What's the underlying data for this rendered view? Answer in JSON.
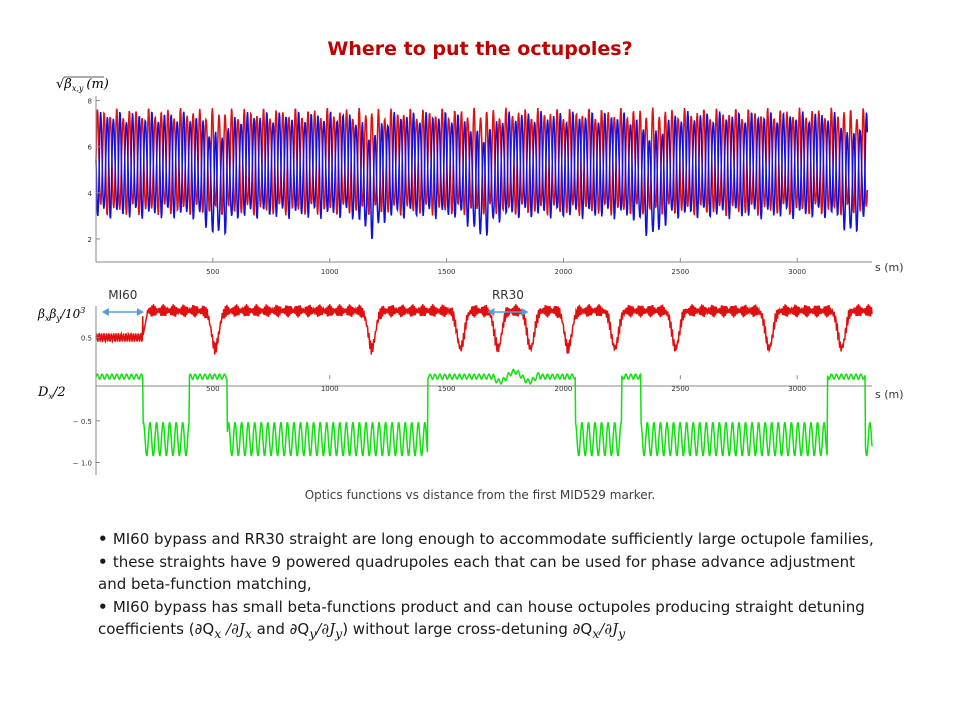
{
  "title": "Where to put the octupoles?",
  "caption": "Optics functions vs distance from the first MID529 marker.",
  "colors": {
    "red": "#e01010",
    "blue": "#1010e0",
    "green": "#10e010",
    "title": "#c00000",
    "arrow": "#5b9bd5"
  },
  "bullets": [
    {
      "text": "MI60 bypass and RR30 straight are long enough to accommodate sufficiently large octupole families,"
    },
    {
      "text": "these straights have 9 powered quadrupoles each that can be used for phase advance adjustment and  beta-function matching,"
    },
    {
      "text": "MI60 bypass has small beta-functions product and can house octupoles producing straight detuning coefficients (∂Q",
      "tail_parts": [
        "x",
        " /∂J",
        "x",
        " and ∂Q",
        "y",
        "/∂J",
        "y",
        ") without large cross-detuning ∂Q",
        "x",
        "/∂J",
        "y"
      ]
    }
  ],
  "chart_data": [
    {
      "type": "line",
      "ylabel": "√β",
      "ylabel_sub": "x,y",
      "ylabel_unit": "(m)",
      "xlabel": "s (m)",
      "xlim": [
        0,
        3320
      ],
      "ylim": [
        1,
        8.2
      ],
      "x_ticks": [
        500,
        1000,
        1500,
        2000,
        2500,
        3000
      ],
      "y_ticks": [
        2,
        4,
        6,
        8
      ],
      "series": [
        {
          "color": "red",
          "values_hint": "oscillating 3–7.5"
        },
        {
          "color": "blue",
          "values_hint": "oscillating 2.5–7.5"
        }
      ]
    },
    {
      "type": "line",
      "ylabel_top": "β",
      "ylabel_top_sub": [
        "x",
        "y"
      ],
      "ylabel_top_tail": "/10",
      "ylabel_top_sup": "3",
      "ylabel_bottom": "D",
      "ylabel_bottom_sub": "x",
      "ylabel_bottom_tail": "/2",
      "xlabel": "s (m)",
      "xlim": [
        0,
        3320
      ],
      "ylim": [
        -1.15,
        0.95
      ],
      "x_ticks": [
        500,
        1000,
        1500,
        2000,
        2500,
        3000
      ],
      "y_ticks": [
        0.5,
        -0.5,
        -1.0
      ],
      "y_tick_labels": [
        "0.5",
        "− 0.5",
        "− 1.0"
      ],
      "annotations": [
        {
          "text": "MI60",
          "from": 25,
          "to": 205
        },
        {
          "text": "RR30",
          "from": 1675,
          "to": 1850
        }
      ],
      "series": [
        {
          "color": "red"
        },
        {
          "color": "green"
        }
      ]
    }
  ]
}
